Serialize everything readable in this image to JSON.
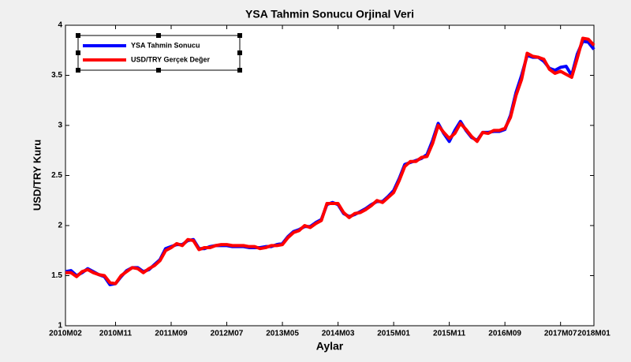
{
  "chart_data": {
    "type": "line",
    "title": "YSA Tahmin Sonucu Orjinal Veri",
    "x_label": "Aylar",
    "y_label": "USD/TRY Kuru",
    "categories": [
      "2010M02",
      null,
      null,
      null,
      null,
      null,
      null,
      null,
      null,
      "2010M11",
      null,
      null,
      null,
      null,
      null,
      null,
      null,
      null,
      null,
      "2011M09",
      null,
      null,
      null,
      null,
      null,
      null,
      null,
      null,
      null,
      "2012M07",
      null,
      null,
      null,
      null,
      null,
      null,
      null,
      null,
      null,
      "2013M05",
      null,
      null,
      null,
      null,
      null,
      null,
      null,
      null,
      null,
      "2014M03",
      null,
      null,
      null,
      null,
      null,
      null,
      null,
      null,
      null,
      "2015M01",
      null,
      null,
      null,
      null,
      null,
      null,
      null,
      null,
      null,
      "2015M11",
      null,
      null,
      null,
      null,
      null,
      null,
      null,
      null,
      null,
      "2016M09",
      null,
      null,
      null,
      null,
      null,
      null,
      null,
      null,
      null,
      "2017M07",
      null,
      null,
      null,
      null,
      null,
      "2018M01"
    ],
    "series": [
      {
        "name": "YSA Tahmin Sonucu",
        "color": "#0000ff",
        "values": [
          1.54,
          1.55,
          1.5,
          1.53,
          1.57,
          1.54,
          1.51,
          1.49,
          1.41,
          1.42,
          1.49,
          1.55,
          1.58,
          1.58,
          1.54,
          1.56,
          1.61,
          1.66,
          1.77,
          1.79,
          1.81,
          1.81,
          1.85,
          1.86,
          1.77,
          1.77,
          1.79,
          1.8,
          1.8,
          1.8,
          1.79,
          1.79,
          1.79,
          1.78,
          1.78,
          1.78,
          1.79,
          1.79,
          1.81,
          1.82,
          1.89,
          1.94,
          1.96,
          1.99,
          1.99,
          2.03,
          2.06,
          2.21,
          2.23,
          2.21,
          2.12,
          2.09,
          2.11,
          2.14,
          2.17,
          2.21,
          2.24,
          2.24,
          2.29,
          2.35,
          2.47,
          2.61,
          2.63,
          2.65,
          2.67,
          2.71,
          2.85,
          3.02,
          2.92,
          2.84,
          2.95,
          3.04,
          2.95,
          2.88,
          2.85,
          2.93,
          2.93,
          2.94,
          2.94,
          2.96,
          3.1,
          3.33,
          3.5,
          3.7,
          3.68,
          3.68,
          3.64,
          3.57,
          3.55,
          3.58,
          3.59,
          3.5,
          3.71,
          3.84,
          3.83,
          3.76
        ]
      },
      {
        "name": "USD/TRY Gerçek Değer",
        "color": "#ff0000",
        "values": [
          1.53,
          1.53,
          1.49,
          1.54,
          1.56,
          1.53,
          1.51,
          1.5,
          1.43,
          1.42,
          1.5,
          1.54,
          1.58,
          1.57,
          1.53,
          1.57,
          1.6,
          1.65,
          1.75,
          1.78,
          1.82,
          1.8,
          1.86,
          1.85,
          1.76,
          1.78,
          1.78,
          1.8,
          1.81,
          1.81,
          1.8,
          1.8,
          1.8,
          1.79,
          1.79,
          1.77,
          1.78,
          1.8,
          1.8,
          1.81,
          1.88,
          1.93,
          1.95,
          2.0,
          1.98,
          2.02,
          2.05,
          2.22,
          2.22,
          2.22,
          2.13,
          2.08,
          2.12,
          2.13,
          2.16,
          2.2,
          2.25,
          2.23,
          2.28,
          2.33,
          2.45,
          2.59,
          2.64,
          2.64,
          2.68,
          2.69,
          2.82,
          3.0,
          2.93,
          2.87,
          2.92,
          3.02,
          2.96,
          2.89,
          2.84,
          2.93,
          2.92,
          2.95,
          2.95,
          2.97,
          3.08,
          3.3,
          3.46,
          3.72,
          3.69,
          3.68,
          3.66,
          3.56,
          3.52,
          3.54,
          3.51,
          3.48,
          3.67,
          3.87,
          3.86,
          3.8
        ]
      }
    ],
    "ylim": [
      1,
      4
    ],
    "yticks": [
      1,
      1.5,
      2,
      2.5,
      3,
      3.5,
      4
    ],
    "legend": "upper left"
  }
}
